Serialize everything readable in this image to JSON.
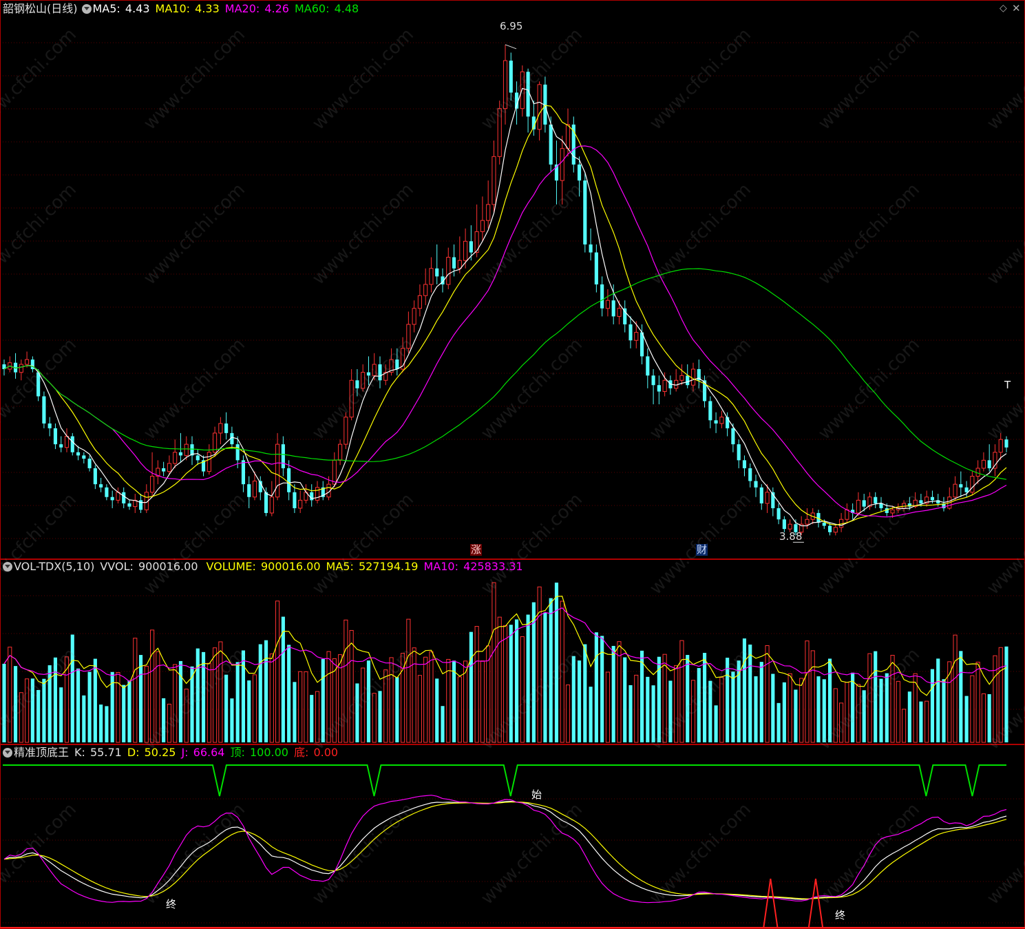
{
  "main": {
    "title": "韶钢松山(日线)",
    "ma5_label": "MA5:",
    "ma5": "4.43",
    "ma10_label": "MA10:",
    "ma10": "4.33",
    "ma20_label": "MA20:",
    "ma20": "4.26",
    "ma60_label": "MA60:",
    "ma60": "4.48",
    "high_label": "6.95",
    "low_label": "3.88",
    "event_tag_1": "涨",
    "event_tag_2": "财",
    "corner_mark": "T",
    "icons": [
      "settings-diamond-icon",
      "close-icon"
    ]
  },
  "volume": {
    "title": "VOL-TDX(5,10)",
    "vvol_label": "VVOL:",
    "vvol": "900016.00",
    "volume_label": "VOLUME:",
    "volume": "900016.00",
    "ma5_label": "MA5:",
    "ma5": "527194.19",
    "ma10_label": "MA10:",
    "ma10": "425833.31"
  },
  "indicator": {
    "title": "精准顶底王",
    "k_label": "K:",
    "k": "55.71",
    "d_label": "D:",
    "d": "50.25",
    "j_label": "J:",
    "j": "66.64",
    "top_label": "顶:",
    "top": "100.00",
    "bottom_label": "底:",
    "bottom": "0.00",
    "marker_start": "始",
    "marker_end": "终"
  },
  "watermark": "www.cfchi.com",
  "colors": {
    "up": "#ff3232",
    "down": "#54ffff",
    "ma5": "#ffffff",
    "ma10": "#ffff00",
    "ma20": "#ff00ff",
    "ma60": "#00e000",
    "border": "#b00000",
    "grid": "#5a0000"
  },
  "chart_data": [
    {
      "type": "candlestick",
      "ylim": [
        3.8,
        7.1
      ],
      "annotations": [
        {
          "label": "6.95",
          "value": 6.95,
          "kind": "high"
        },
        {
          "label": "3.88",
          "value": 3.88,
          "kind": "low"
        }
      ],
      "series": [
        {
          "name": "MA5"
        },
        {
          "name": "MA10"
        },
        {
          "name": "MA20"
        },
        {
          "name": "MA60"
        }
      ],
      "ohlc": [
        [
          4.95,
          4.92,
          4.98,
          4.88
        ],
        [
          4.92,
          4.96,
          5.0,
          4.9
        ],
        [
          4.96,
          4.9,
          5.02,
          4.86
        ],
        [
          4.9,
          4.95,
          4.98,
          4.85
        ],
        [
          4.95,
          4.98,
          5.03,
          4.93
        ],
        [
          4.98,
          4.92,
          5.0,
          4.9
        ],
        [
          4.9,
          4.75,
          4.92,
          4.72
        ],
        [
          4.75,
          4.58,
          4.78,
          4.55
        ],
        [
          4.58,
          4.55,
          4.62,
          4.5
        ],
        [
          4.55,
          4.45,
          4.58,
          4.42
        ],
        [
          4.45,
          4.43,
          4.5,
          4.4
        ],
        [
          4.43,
          4.5,
          4.55,
          4.4
        ],
        [
          4.5,
          4.4,
          4.52,
          4.38
        ],
        [
          4.4,
          4.38,
          4.44,
          4.35
        ],
        [
          4.38,
          4.36,
          4.4,
          4.33
        ],
        [
          4.36,
          4.3,
          4.38,
          4.28
        ],
        [
          4.3,
          4.2,
          4.32,
          4.17
        ],
        [
          4.2,
          4.18,
          4.24,
          4.15
        ],
        [
          4.18,
          4.12,
          4.2,
          4.1
        ],
        [
          4.12,
          4.1,
          4.16,
          4.05
        ],
        [
          4.1,
          4.15,
          4.18,
          4.08
        ],
        [
          4.15,
          4.08,
          4.18,
          4.05
        ],
        [
          4.08,
          4.06,
          4.1,
          4.04
        ],
        [
          4.06,
          4.1,
          4.14,
          4.02
        ],
        [
          4.1,
          4.04,
          4.14,
          4.02
        ],
        [
          4.04,
          4.15,
          4.2,
          4.02
        ],
        [
          4.15,
          4.25,
          4.4,
          4.12
        ],
        [
          4.25,
          4.3,
          4.35,
          4.2
        ],
        [
          4.3,
          4.28,
          4.34,
          4.25
        ],
        [
          4.28,
          4.33,
          4.38,
          4.26
        ],
        [
          4.33,
          4.4,
          4.48,
          4.3
        ],
        [
          4.4,
          4.38,
          4.52,
          4.34
        ],
        [
          4.38,
          4.45,
          4.5,
          4.35
        ],
        [
          4.45,
          4.38,
          4.5,
          4.32
        ],
        [
          4.38,
          4.35,
          4.42,
          4.32
        ],
        [
          4.35,
          4.28,
          4.38,
          4.25
        ],
        [
          4.28,
          4.4,
          4.45,
          4.26
        ],
        [
          4.4,
          4.52,
          4.56,
          4.37
        ],
        [
          4.52,
          4.58,
          4.62,
          4.45
        ],
        [
          4.58,
          4.52,
          4.65,
          4.48
        ],
        [
          4.52,
          4.45,
          4.56,
          4.42
        ],
        [
          4.45,
          4.35,
          4.5,
          4.3
        ],
        [
          4.35,
          4.2,
          4.38,
          4.15
        ],
        [
          4.2,
          4.12,
          4.25,
          4.05
        ],
        [
          4.12,
          4.22,
          4.28,
          4.1
        ],
        [
          4.22,
          4.15,
          4.25,
          4.1
        ],
        [
          4.15,
          4.02,
          4.18,
          4.0
        ],
        [
          4.02,
          4.12,
          4.22,
          4.0
        ],
        [
          4.12,
          4.45,
          4.52,
          4.1
        ],
        [
          4.45,
          4.3,
          4.5,
          4.25
        ],
        [
          4.3,
          4.15,
          4.35,
          4.1
        ],
        [
          4.15,
          4.05,
          4.2,
          4.02
        ],
        [
          4.05,
          4.1,
          4.16,
          4.02
        ],
        [
          4.1,
          4.15,
          4.2,
          4.08
        ],
        [
          4.15,
          4.1,
          4.2,
          4.06
        ],
        [
          4.1,
          4.18,
          4.22,
          4.08
        ],
        [
          4.18,
          4.12,
          4.22,
          4.1
        ],
        [
          4.12,
          4.2,
          4.25,
          4.1
        ],
        [
          4.2,
          4.35,
          4.4,
          4.18
        ],
        [
          4.35,
          4.45,
          4.48,
          4.32
        ],
        [
          4.45,
          4.62,
          4.65,
          4.42
        ],
        [
          4.62,
          4.85,
          4.92,
          4.6
        ],
        [
          4.85,
          4.8,
          4.92,
          4.75
        ],
        [
          4.8,
          4.9,
          4.95,
          4.78
        ],
        [
          4.9,
          4.88,
          5.0,
          4.82
        ],
        [
          4.88,
          4.95,
          5.02,
          4.85
        ],
        [
          4.95,
          4.85,
          5.0,
          4.8
        ],
        [
          4.85,
          4.9,
          4.95,
          4.82
        ],
        [
          4.9,
          4.98,
          5.05,
          4.88
        ],
        [
          4.98,
          4.92,
          5.05,
          4.88
        ],
        [
          4.92,
          5.05,
          5.12,
          4.9
        ],
        [
          5.05,
          5.2,
          5.28,
          5.02
        ],
        [
          5.2,
          5.3,
          5.35,
          5.15
        ],
        [
          5.3,
          5.38,
          5.45,
          5.25
        ],
        [
          5.38,
          5.45,
          5.55,
          5.32
        ],
        [
          5.45,
          5.55,
          5.62,
          5.4
        ],
        [
          5.55,
          5.5,
          5.7,
          5.45
        ],
        [
          5.5,
          5.45,
          5.55,
          5.4
        ],
        [
          5.45,
          5.62,
          5.68,
          5.42
        ],
        [
          5.62,
          5.55,
          5.7,
          5.5
        ],
        [
          5.55,
          5.6,
          5.75,
          5.52
        ],
        [
          5.6,
          5.72,
          5.8,
          5.55
        ],
        [
          5.72,
          5.65,
          5.82,
          5.6
        ],
        [
          5.65,
          5.78,
          5.95,
          5.62
        ],
        [
          5.78,
          5.85,
          6.0,
          5.72
        ],
        [
          5.85,
          5.95,
          6.1,
          5.8
        ],
        [
          5.95,
          6.25,
          6.35,
          5.9
        ],
        [
          6.25,
          6.55,
          6.6,
          6.2
        ],
        [
          6.55,
          6.85,
          6.95,
          6.45
        ],
        [
          6.85,
          6.65,
          6.9,
          6.6
        ],
        [
          6.65,
          6.55,
          6.72,
          6.45
        ],
        [
          6.55,
          6.78,
          6.82,
          6.5
        ],
        [
          6.78,
          6.5,
          6.8,
          6.4
        ],
        [
          6.5,
          6.42,
          6.6,
          6.38
        ],
        [
          6.42,
          6.7,
          6.72,
          6.35
        ],
        [
          6.7,
          6.45,
          6.75,
          6.4
        ],
        [
          6.45,
          6.2,
          6.5,
          6.15
        ],
        [
          6.2,
          6.1,
          6.35,
          5.95
        ],
        [
          6.1,
          6.3,
          6.38,
          5.95
        ],
        [
          6.3,
          6.45,
          6.55,
          6.25
        ],
        [
          6.45,
          6.2,
          6.5,
          6.15
        ],
        [
          6.2,
          6.1,
          6.25,
          6.0
        ],
        [
          6.1,
          5.7,
          6.15,
          5.65
        ],
        [
          5.7,
          5.65,
          5.8,
          5.6
        ],
        [
          5.65,
          5.45,
          5.7,
          5.4
        ],
        [
          5.45,
          5.3,
          5.5,
          5.25
        ],
        [
          5.3,
          5.35,
          5.42,
          5.25
        ],
        [
          5.35,
          5.25,
          5.45,
          5.2
        ],
        [
          5.25,
          5.3,
          5.35,
          5.2
        ],
        [
          5.3,
          5.2,
          5.35,
          5.15
        ],
        [
          5.2,
          5.1,
          5.25,
          5.05
        ],
        [
          5.1,
          5.15,
          5.22,
          5.05
        ],
        [
          5.15,
          5.0,
          5.2,
          4.95
        ],
        [
          5.0,
          4.88,
          5.05,
          4.8
        ],
        [
          4.88,
          4.82,
          4.92,
          4.7
        ],
        [
          4.82,
          4.78,
          4.88,
          4.7
        ],
        [
          4.78,
          4.85,
          4.9,
          4.75
        ],
        [
          4.85,
          4.8,
          4.88,
          4.76
        ],
        [
          4.8,
          4.85,
          4.92,
          4.78
        ],
        [
          4.85,
          4.88,
          4.95,
          4.82
        ],
        [
          4.88,
          4.82,
          4.95,
          4.8
        ],
        [
          4.82,
          4.92,
          4.96,
          4.78
        ],
        [
          4.92,
          4.85,
          4.98,
          4.8
        ],
        [
          4.85,
          4.72,
          4.88,
          4.68
        ],
        [
          4.72,
          4.6,
          4.75,
          4.55
        ],
        [
          4.6,
          4.58,
          4.65,
          4.52
        ],
        [
          4.58,
          4.62,
          4.66,
          4.55
        ],
        [
          4.62,
          4.55,
          4.65,
          4.5
        ],
        [
          4.55,
          4.45,
          4.58,
          4.4
        ],
        [
          4.45,
          4.35,
          4.48,
          4.3
        ],
        [
          4.35,
          4.3,
          4.38,
          4.25
        ],
        [
          4.3,
          4.22,
          4.33,
          4.18
        ],
        [
          4.22,
          4.18,
          4.26,
          4.12
        ],
        [
          4.18,
          4.08,
          4.2,
          4.04
        ],
        [
          4.08,
          4.15,
          4.2,
          4.02
        ],
        [
          4.15,
          4.05,
          4.18,
          4.0
        ],
        [
          4.05,
          3.98,
          4.08,
          3.95
        ],
        [
          3.98,
          3.92,
          4.0,
          3.9
        ],
        [
          3.92,
          3.95,
          3.98,
          3.9
        ],
        [
          3.95,
          3.9,
          3.98,
          3.88
        ],
        [
          3.9,
          3.95,
          4.0,
          3.88
        ],
        [
          3.95,
          3.98,
          4.05,
          3.92
        ],
        [
          3.98,
          4.02,
          4.05,
          3.95
        ],
        [
          4.02,
          3.96,
          4.04,
          3.93
        ],
        [
          3.96,
          3.94,
          3.98,
          3.92
        ],
        [
          3.94,
          3.9,
          3.96,
          3.88
        ],
        [
          3.9,
          3.93,
          3.95,
          3.88
        ],
        [
          3.93,
          3.98,
          4.02,
          3.9
        ],
        [
          3.98,
          4.04,
          4.08,
          3.96
        ],
        [
          4.04,
          4.02,
          4.08,
          3.98
        ],
        [
          4.02,
          4.1,
          4.15,
          4.0
        ],
        [
          4.1,
          4.06,
          4.14,
          4.03
        ],
        [
          4.06,
          4.12,
          4.15,
          4.04
        ],
        [
          4.12,
          4.08,
          4.15,
          4.05
        ],
        [
          4.08,
          4.05,
          4.12,
          4.03
        ],
        [
          4.05,
          4.02,
          4.08,
          4.0
        ],
        [
          4.02,
          4.04,
          4.06,
          3.99
        ],
        [
          4.04,
          4.05,
          4.08,
          4.02
        ],
        [
          4.05,
          4.08,
          4.1,
          4.03
        ],
        [
          4.08,
          4.06,
          4.12,
          4.04
        ],
        [
          4.06,
          4.1,
          4.15,
          4.05
        ],
        [
          4.1,
          4.08,
          4.14,
          4.06
        ],
        [
          4.08,
          4.12,
          4.16,
          4.06
        ],
        [
          4.12,
          4.1,
          4.16,
          4.08
        ],
        [
          4.1,
          4.08,
          4.14,
          4.06
        ],
        [
          4.08,
          4.05,
          4.12,
          4.03
        ],
        [
          4.05,
          4.12,
          4.18,
          4.04
        ],
        [
          4.12,
          4.2,
          4.25,
          4.1
        ],
        [
          4.2,
          4.18,
          4.28,
          4.12
        ],
        [
          4.18,
          4.15,
          4.22,
          4.12
        ],
        [
          4.15,
          4.25,
          4.28,
          4.13
        ],
        [
          4.25,
          4.3,
          4.35,
          4.2
        ],
        [
          4.3,
          4.35,
          4.4,
          4.28
        ],
        [
          4.35,
          4.3,
          4.45,
          4.28
        ],
        [
          4.3,
          4.4,
          4.45,
          4.25
        ],
        [
          4.4,
          4.48,
          4.52,
          4.35
        ],
        [
          4.48,
          4.43,
          4.5,
          4.4
        ]
      ]
    }
  ]
}
